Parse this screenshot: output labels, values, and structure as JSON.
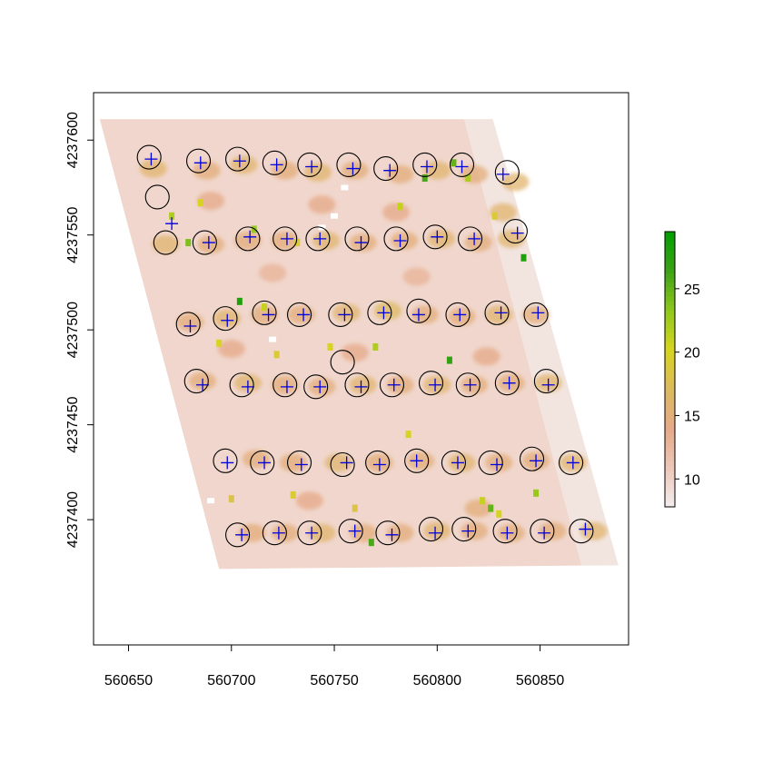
{
  "chart_data": {
    "type": "raster-map",
    "title": "",
    "xlabel": "",
    "ylabel": "",
    "xlim": [
      560633,
      560893
    ],
    "ylim": [
      4237334,
      4237625
    ],
    "x_ticks": [
      560650,
      560700,
      560750,
      560800,
      560850
    ],
    "x_tick_labels": [
      "560650",
      "560700",
      "560750",
      "560800",
      "560850"
    ],
    "y_ticks": [
      4237400,
      4237450,
      4237500,
      4237550,
      4237600
    ],
    "y_tick_labels": [
      "4237400",
      "4237450",
      "4237500",
      "4237550",
      "4237600"
    ],
    "legend": {
      "placement": "right",
      "range": [
        7.8,
        29.5
      ],
      "ticks": [
        10,
        15,
        20,
        25
      ],
      "tick_labels": [
        "10",
        "15",
        "20",
        "25"
      ],
      "colors": [
        "#f3eeee",
        "#edc7b8",
        "#e6a988",
        "#dcba5e",
        "#d8d51d",
        "#8fc81b",
        "#3da316",
        "#029e00"
      ]
    },
    "raster_field": {
      "corners": [
        [
          560636,
          4237611
        ],
        [
          560827,
          4237611
        ],
        [
          560888,
          4237376
        ],
        [
          560694,
          4237374
        ]
      ],
      "base_color": "#f0d6cc",
      "fade_color": "#f2e7e4"
    },
    "raster_patches": [
      {
        "x": 560662,
        "y": 4237585,
        "v": 16
      },
      {
        "x": 560688,
        "y": 4237584,
        "v": 15
      },
      {
        "x": 560706,
        "y": 4237587,
        "v": 16
      },
      {
        "x": 560726,
        "y": 4237584,
        "v": 15
      },
      {
        "x": 560742,
        "y": 4237583,
        "v": 16
      },
      {
        "x": 560760,
        "y": 4237584,
        "v": 15
      },
      {
        "x": 560782,
        "y": 4237582,
        "v": 15
      },
      {
        "x": 560800,
        "y": 4237584,
        "v": 16
      },
      {
        "x": 560818,
        "y": 4237582,
        "v": 15
      },
      {
        "x": 560838,
        "y": 4237578,
        "v": 16
      },
      {
        "x": 560690,
        "y": 4237568,
        "v": 14
      },
      {
        "x": 560744,
        "y": 4237566,
        "v": 14
      },
      {
        "x": 560780,
        "y": 4237562,
        "v": 14
      },
      {
        "x": 560832,
        "y": 4237562,
        "v": 16
      },
      {
        "x": 560668,
        "y": 4237545,
        "v": 16
      },
      {
        "x": 560690,
        "y": 4237545,
        "v": 15
      },
      {
        "x": 560708,
        "y": 4237547,
        "v": 15
      },
      {
        "x": 560726,
        "y": 4237547,
        "v": 15
      },
      {
        "x": 560746,
        "y": 4237547,
        "v": 16
      },
      {
        "x": 560764,
        "y": 4237546,
        "v": 15
      },
      {
        "x": 560784,
        "y": 4237547,
        "v": 15
      },
      {
        "x": 560802,
        "y": 4237548,
        "v": 16
      },
      {
        "x": 560820,
        "y": 4237546,
        "v": 15
      },
      {
        "x": 560836,
        "y": 4237548,
        "v": 16
      },
      {
        "x": 560720,
        "y": 4237530,
        "v": 13
      },
      {
        "x": 560790,
        "y": 4237528,
        "v": 13
      },
      {
        "x": 560680,
        "y": 4237504,
        "v": 15
      },
      {
        "x": 560698,
        "y": 4237506,
        "v": 16
      },
      {
        "x": 560716,
        "y": 4237508,
        "v": 15
      },
      {
        "x": 560734,
        "y": 4237508,
        "v": 15
      },
      {
        "x": 560756,
        "y": 4237509,
        "v": 16
      },
      {
        "x": 560776,
        "y": 4237510,
        "v": 17
      },
      {
        "x": 560794,
        "y": 4237508,
        "v": 15
      },
      {
        "x": 560812,
        "y": 4237507,
        "v": 15
      },
      {
        "x": 560830,
        "y": 4237508,
        "v": 16
      },
      {
        "x": 560848,
        "y": 4237508,
        "v": 15
      },
      {
        "x": 560700,
        "y": 4237490,
        "v": 14
      },
      {
        "x": 560760,
        "y": 4237488,
        "v": 14
      },
      {
        "x": 560824,
        "y": 4237486,
        "v": 14
      },
      {
        "x": 560686,
        "y": 4237473,
        "v": 15
      },
      {
        "x": 560708,
        "y": 4237472,
        "v": 16
      },
      {
        "x": 560726,
        "y": 4237471,
        "v": 15
      },
      {
        "x": 560744,
        "y": 4237470,
        "v": 15
      },
      {
        "x": 560764,
        "y": 4237471,
        "v": 16
      },
      {
        "x": 560782,
        "y": 4237471,
        "v": 15
      },
      {
        "x": 560800,
        "y": 4237471,
        "v": 16
      },
      {
        "x": 560818,
        "y": 4237471,
        "v": 15
      },
      {
        "x": 560836,
        "y": 4237472,
        "v": 15
      },
      {
        "x": 560854,
        "y": 4237472,
        "v": 16
      },
      {
        "x": 560712,
        "y": 4237432,
        "v": 15
      },
      {
        "x": 560730,
        "y": 4237430,
        "v": 15
      },
      {
        "x": 560752,
        "y": 4237430,
        "v": 16
      },
      {
        "x": 560772,
        "y": 4237430,
        "v": 15
      },
      {
        "x": 560792,
        "y": 4237431,
        "v": 15
      },
      {
        "x": 560812,
        "y": 4237430,
        "v": 16
      },
      {
        "x": 560830,
        "y": 4237430,
        "v": 15
      },
      {
        "x": 560848,
        "y": 4237431,
        "v": 15
      },
      {
        "x": 560866,
        "y": 4237430,
        "v": 16
      },
      {
        "x": 560738,
        "y": 4237410,
        "v": 14
      },
      {
        "x": 560820,
        "y": 4237406,
        "v": 15
      },
      {
        "x": 560710,
        "y": 4237393,
        "v": 15
      },
      {
        "x": 560726,
        "y": 4237393,
        "v": 15
      },
      {
        "x": 560744,
        "y": 4237393,
        "v": 16
      },
      {
        "x": 560764,
        "y": 4237393,
        "v": 15
      },
      {
        "x": 560782,
        "y": 4237393,
        "v": 15
      },
      {
        "x": 560800,
        "y": 4237394,
        "v": 16
      },
      {
        "x": 560818,
        "y": 4237394,
        "v": 15
      },
      {
        "x": 560836,
        "y": 4237393,
        "v": 15
      },
      {
        "x": 560856,
        "y": 4237394,
        "v": 15
      },
      {
        "x": 560876,
        "y": 4237394,
        "v": 16
      }
    ],
    "raster_hotspots": [
      {
        "x": 560671,
        "y": 4237560,
        "v": 22
      },
      {
        "x": 560679,
        "y": 4237546,
        "v": 24
      },
      {
        "x": 560685,
        "y": 4237567,
        "v": 20
      },
      {
        "x": 560711,
        "y": 4237553,
        "v": 23
      },
      {
        "x": 560732,
        "y": 4237546,
        "v": 19
      },
      {
        "x": 560782,
        "y": 4237565,
        "v": 21
      },
      {
        "x": 560794,
        "y": 4237580,
        "v": 26
      },
      {
        "x": 560808,
        "y": 4237588,
        "v": 25
      },
      {
        "x": 560815,
        "y": 4237580,
        "v": 22
      },
      {
        "x": 560828,
        "y": 4237560,
        "v": 19
      },
      {
        "x": 560842,
        "y": 4237538,
        "v": 28
      },
      {
        "x": 560704,
        "y": 4237515,
        "v": 28
      },
      {
        "x": 560716,
        "y": 4237512,
        "v": 21
      },
      {
        "x": 560694,
        "y": 4237493,
        "v": 20
      },
      {
        "x": 560722,
        "y": 4237487,
        "v": 19
      },
      {
        "x": 560748,
        "y": 4237491,
        "v": 20
      },
      {
        "x": 560770,
        "y": 4237491,
        "v": 22
      },
      {
        "x": 560806,
        "y": 4237484,
        "v": 27
      },
      {
        "x": 560786,
        "y": 4237445,
        "v": 20
      },
      {
        "x": 560822,
        "y": 4237410,
        "v": 21
      },
      {
        "x": 560826,
        "y": 4237406,
        "v": 25
      },
      {
        "x": 560830,
        "y": 4237403,
        "v": 20
      },
      {
        "x": 560848,
        "y": 4237414,
        "v": 23
      },
      {
        "x": 560730,
        "y": 4237413,
        "v": 19
      },
      {
        "x": 560760,
        "y": 4237406,
        "v": 18
      },
      {
        "x": 560700,
        "y": 4237411,
        "v": 18
      },
      {
        "x": 560768,
        "y": 4237388,
        "v": 26
      }
    ],
    "raster_holes": [
      {
        "x": 560750,
        "y": 4237560
      },
      {
        "x": 560755,
        "y": 4237575
      },
      {
        "x": 560744,
        "y": 4237554
      },
      {
        "x": 560720,
        "y": 4237495
      },
      {
        "x": 560690,
        "y": 4237410
      }
    ],
    "series": [
      {
        "marker": "circle",
        "color": "#000000",
        "points": [
          [
            560660,
            4237591
          ],
          [
            560684,
            4237589
          ],
          [
            560703,
            4237590
          ],
          [
            560721,
            4237588
          ],
          [
            560738,
            4237587
          ],
          [
            560757,
            4237587
          ],
          [
            560775,
            4237585
          ],
          [
            560794,
            4237587
          ],
          [
            560812,
            4237587
          ],
          [
            560834,
            4237583
          ],
          [
            560664,
            4237570
          ],
          [
            560668,
            4237546
          ],
          [
            560687,
            4237546
          ],
          [
            560708,
            4237548
          ],
          [
            560726,
            4237548
          ],
          [
            560742,
            4237548
          ],
          [
            560761,
            4237548
          ],
          [
            560780,
            4237548
          ],
          [
            560799,
            4237549
          ],
          [
            560816,
            4237548
          ],
          [
            560838,
            4237552
          ],
          [
            560679,
            4237503
          ],
          [
            560697,
            4237506
          ],
          [
            560716,
            4237509
          ],
          [
            560733,
            4237508
          ],
          [
            560753,
            4237508
          ],
          [
            560772,
            4237509
          ],
          [
            560791,
            4237510
          ],
          [
            560810,
            4237508
          ],
          [
            560829,
            4237509
          ],
          [
            560848,
            4237508
          ],
          [
            560754,
            4237483
          ],
          [
            560683,
            4237473
          ],
          [
            560705,
            4237471
          ],
          [
            560726,
            4237471
          ],
          [
            560741,
            4237470
          ],
          [
            560761,
            4237471
          ],
          [
            560778,
            4237471
          ],
          [
            560797,
            4237472
          ],
          [
            560815,
            4237471
          ],
          [
            560834,
            4237472
          ],
          [
            560853,
            4237473
          ],
          [
            560697,
            4237431
          ],
          [
            560715,
            4237430
          ],
          [
            560733,
            4237430
          ],
          [
            560754,
            4237429
          ],
          [
            560771,
            4237430
          ],
          [
            560790,
            4237431
          ],
          [
            560808,
            4237430
          ],
          [
            560826,
            4237430
          ],
          [
            560846,
            4237432
          ],
          [
            560865,
            4237430
          ],
          [
            560703,
            4237392
          ],
          [
            560721,
            4237393
          ],
          [
            560738,
            4237393
          ],
          [
            560758,
            4237394
          ],
          [
            560776,
            4237393
          ],
          [
            560797,
            4237395
          ],
          [
            560813,
            4237395
          ],
          [
            560833,
            4237394
          ],
          [
            560851,
            4237394
          ],
          [
            560870,
            4237394
          ]
        ]
      },
      {
        "marker": "plus",
        "color": "#0000dd",
        "points": [
          [
            560661,
            4237590
          ],
          [
            560685,
            4237588
          ],
          [
            560704,
            4237589
          ],
          [
            560722,
            4237587
          ],
          [
            560739,
            4237586
          ],
          [
            560759,
            4237585
          ],
          [
            560777,
            4237584
          ],
          [
            560795,
            4237586
          ],
          [
            560812,
            4237586
          ],
          [
            560832,
            4237582
          ],
          [
            560671,
            4237556
          ],
          [
            560689,
            4237546
          ],
          [
            560709,
            4237549
          ],
          [
            560727,
            4237548
          ],
          [
            560743,
            4237548
          ],
          [
            560763,
            4237546
          ],
          [
            560782,
            4237547
          ],
          [
            560800,
            4237549
          ],
          [
            560818,
            4237548
          ],
          [
            560839,
            4237551
          ],
          [
            560680,
            4237502
          ],
          [
            560698,
            4237505
          ],
          [
            560718,
            4237508
          ],
          [
            560735,
            4237508
          ],
          [
            560755,
            4237508
          ],
          [
            560774,
            4237509
          ],
          [
            560791,
            4237508
          ],
          [
            560811,
            4237508
          ],
          [
            560831,
            4237509
          ],
          [
            560849,
            4237509
          ],
          [
            560686,
            4237471
          ],
          [
            560708,
            4237470
          ],
          [
            560727,
            4237470
          ],
          [
            560743,
            4237470
          ],
          [
            560763,
            4237470
          ],
          [
            560779,
            4237471
          ],
          [
            560799,
            4237471
          ],
          [
            560816,
            4237471
          ],
          [
            560835,
            4237472
          ],
          [
            560854,
            4237471
          ],
          [
            560698,
            4237430
          ],
          [
            560716,
            4237430
          ],
          [
            560734,
            4237429
          ],
          [
            560756,
            4237430
          ],
          [
            560772,
            4237429
          ],
          [
            560790,
            4237431
          ],
          [
            560810,
            4237430
          ],
          [
            560829,
            4237429
          ],
          [
            560848,
            4237431
          ],
          [
            560866,
            4237430
          ],
          [
            560705,
            4237392
          ],
          [
            560723,
            4237393
          ],
          [
            560739,
            4237393
          ],
          [
            560760,
            4237394
          ],
          [
            560778,
            4237392
          ],
          [
            560799,
            4237393
          ],
          [
            560815,
            4237394
          ],
          [
            560834,
            4237393
          ],
          [
            560852,
            4237393
          ],
          [
            560872,
            4237395
          ]
        ]
      }
    ]
  }
}
